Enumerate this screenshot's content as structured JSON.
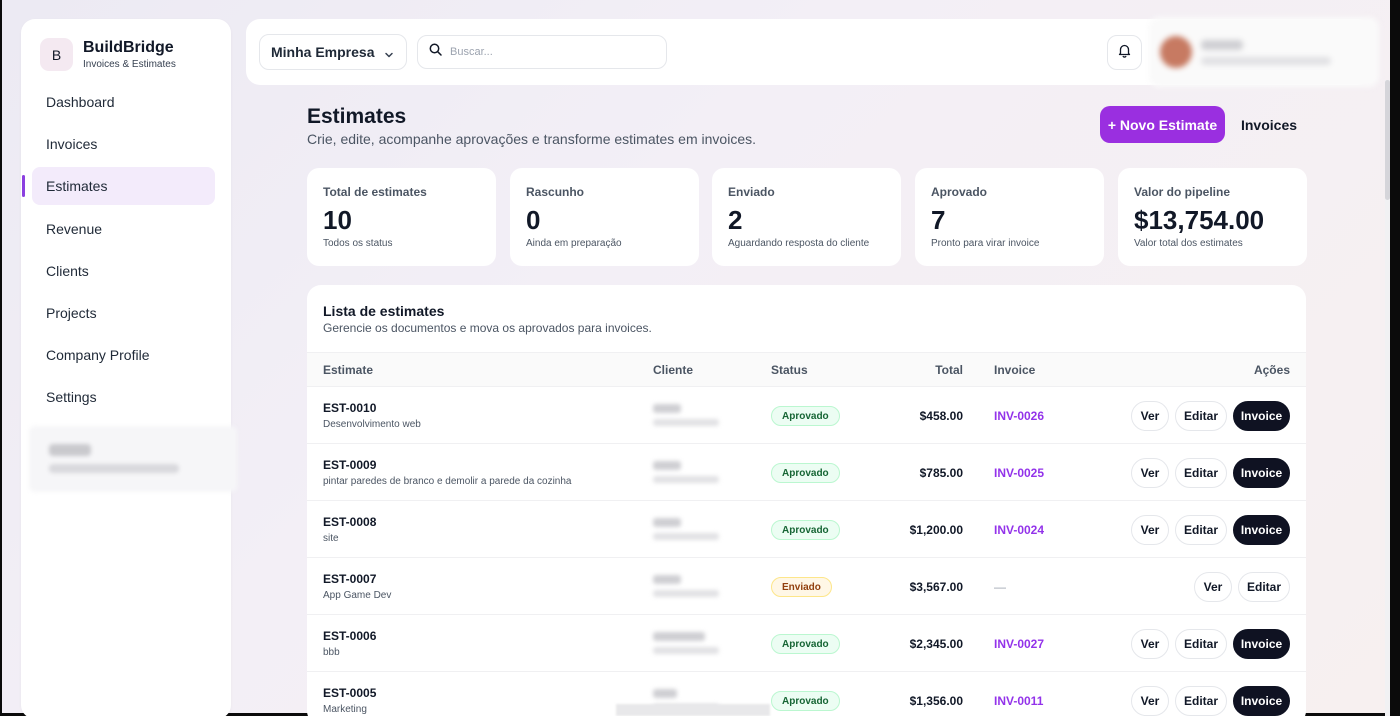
{
  "brand": {
    "logo_letter": "B",
    "name": "BuildBridge",
    "subtitle": "Invoices & Estimates"
  },
  "sidebar": {
    "items": [
      {
        "label": "Dashboard",
        "active": false
      },
      {
        "label": "Invoices",
        "active": false
      },
      {
        "label": "Estimates",
        "active": true
      },
      {
        "label": "Revenue",
        "active": false
      },
      {
        "label": "Clients",
        "active": false
      },
      {
        "label": "Projects",
        "active": false
      },
      {
        "label": "Company Profile",
        "active": false
      },
      {
        "label": "Settings",
        "active": false
      }
    ]
  },
  "topbar": {
    "company": "Minha Empresa",
    "search_placeholder": "Buscar...",
    "search_value": ""
  },
  "header": {
    "title": "Estimates",
    "subtitle": "Crie, edite, acompanhe aprovações e transforme estimates em invoices.",
    "new_button": "+ Novo Estimate",
    "invoices_button": "Invoices"
  },
  "stats": [
    {
      "label": "Total de estimates",
      "value": "10",
      "hint": "Todos os status"
    },
    {
      "label": "Rascunho",
      "value": "0",
      "hint": "Ainda em preparação"
    },
    {
      "label": "Enviado",
      "value": "2",
      "hint": "Aguardando resposta do cliente"
    },
    {
      "label": "Aprovado",
      "value": "7",
      "hint": "Pronto para virar invoice"
    },
    {
      "label": "Valor do pipeline",
      "value": "$13,754.00",
      "hint": "Valor total dos estimates"
    }
  ],
  "table": {
    "title": "Lista de estimates",
    "subtitle": "Gerencie os documentos e mova os aprovados para invoices.",
    "headers": {
      "estimate": "Estimate",
      "client": "Cliente",
      "status": "Status",
      "total": "Total",
      "invoice": "Invoice",
      "actions": "Ações"
    },
    "action_labels": {
      "view": "Ver",
      "edit": "Editar",
      "invoice": "Invoice"
    },
    "rows": [
      {
        "id": "EST-0010",
        "desc": "Desenvolvimento web",
        "status": "Aprovado",
        "status_kind": "aprovado",
        "total": "$458.00",
        "invoice": "INV-0026",
        "has_invoice": true
      },
      {
        "id": "EST-0009",
        "desc": "pintar paredes de branco e demolir a parede da cozinha",
        "status": "Aprovado",
        "status_kind": "aprovado",
        "total": "$785.00",
        "invoice": "INV-0025",
        "has_invoice": true
      },
      {
        "id": "EST-0008",
        "desc": "site",
        "status": "Aprovado",
        "status_kind": "aprovado",
        "total": "$1,200.00",
        "invoice": "INV-0024",
        "has_invoice": true
      },
      {
        "id": "EST-0007",
        "desc": "App Game Dev",
        "status": "Enviado",
        "status_kind": "enviado",
        "total": "$3,567.00",
        "invoice": "—",
        "has_invoice": false
      },
      {
        "id": "EST-0006",
        "desc": "bbb",
        "status": "Aprovado",
        "status_kind": "aprovado",
        "total": "$2,345.00",
        "invoice": "INV-0027",
        "has_invoice": true
      },
      {
        "id": "EST-0005",
        "desc": "Marketing",
        "status": "Aprovado",
        "status_kind": "aprovado",
        "total": "$1,356.00",
        "invoice": "INV-0011",
        "has_invoice": true
      }
    ]
  },
  "colors": {
    "accent": "#9a2fe0",
    "invoice_link": "#9333ea",
    "dark_button": "#0f1222"
  },
  "icons": {
    "company_select": "chevron-down-icon",
    "search": "search-icon",
    "notifications": "bell-icon"
  }
}
